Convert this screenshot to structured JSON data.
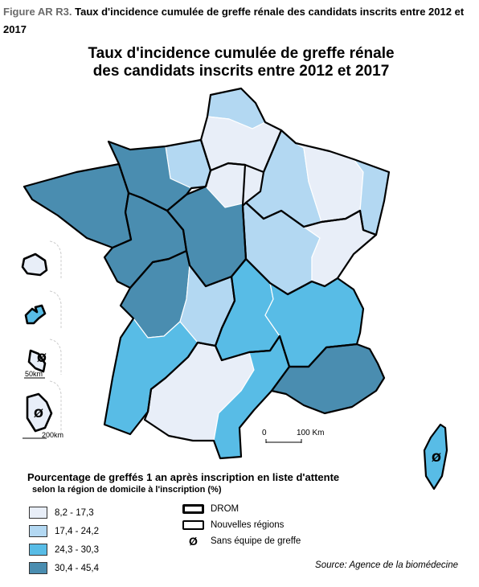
{
  "figure": {
    "prefix": "Figure AR R3.",
    "caption": "Taux d'incidence cumulée de greffe rénale des candidats inscrits entre 2012 et 2017"
  },
  "map": {
    "title_line1": "Taux d'incidence cumulée de greffe rénale",
    "title_line2": "des candidats inscrits entre 2012 et 2017",
    "scale": {
      "start": "0",
      "end": "100 Km"
    },
    "drom_scales": {
      "small": "50km",
      "large": "200km"
    },
    "no_team_symbol": "Ø"
  },
  "colors": {
    "class1": "#e8eef8",
    "class2": "#b3d8f2",
    "class3": "#58bce6",
    "class4": "#4a8db0"
  },
  "regions": [
    {
      "name": "Hauts-de-France (Nord)",
      "class": 2
    },
    {
      "name": "Hauts-de-France (Picardie)",
      "class": 1
    },
    {
      "name": "Normandie (Haute)",
      "class": 2
    },
    {
      "name": "Normandie (Basse)",
      "class": 4
    },
    {
      "name": "Bretagne",
      "class": 4
    },
    {
      "name": "Pays de la Loire",
      "class": 4
    },
    {
      "name": "Centre-Val de Loire",
      "class": 4
    },
    {
      "name": "Ile-de-France",
      "class": 1
    },
    {
      "name": "Champagne-Ardenne",
      "class": 2
    },
    {
      "name": "Lorraine",
      "class": 1
    },
    {
      "name": "Alsace",
      "class": 2
    },
    {
      "name": "Bourgogne",
      "class": 2
    },
    {
      "name": "Franche-Comté",
      "class": 1
    },
    {
      "name": "Poitou-Charentes",
      "class": 4
    },
    {
      "name": "Limousin",
      "class": 2
    },
    {
      "name": "Auvergne",
      "class": 3
    },
    {
      "name": "Rhône-Alpes",
      "class": 3
    },
    {
      "name": "Aquitaine",
      "class": 3
    },
    {
      "name": "Midi-Pyrénées",
      "class": 1
    },
    {
      "name": "Languedoc-Roussillon",
      "class": 3
    },
    {
      "name": "Provence-Alpes-Côte d'Azur",
      "class": 4
    },
    {
      "name": "Corse",
      "class": 3
    },
    {
      "name": "La Réunion",
      "class": 1
    },
    {
      "name": "Guadeloupe",
      "class": 3
    },
    {
      "name": "Martinique",
      "class": 1
    },
    {
      "name": "Guyane",
      "class": 1
    }
  ],
  "legend": {
    "title": "Pourcentage de greffés 1 an après inscription en liste d'attente",
    "subtitle": "selon la région de domicile à l'inscription (%)",
    "classes": [
      {
        "label": "8,2 - 17,3",
        "color": "#e8eef8"
      },
      {
        "label": "17,4 - 24,2",
        "color": "#b3d8f2"
      },
      {
        "label": "24,3 - 30,3",
        "color": "#58bce6"
      },
      {
        "label": "30,4 - 45,4",
        "color": "#4a8db0"
      }
    ],
    "symbols": {
      "drom": "DROM",
      "regions": "Nouvelles régions",
      "no_team": "Sans équipe de greffe",
      "no_team_symbol": "Ø"
    }
  },
  "source": "Source: Agence de la biomédecine"
}
